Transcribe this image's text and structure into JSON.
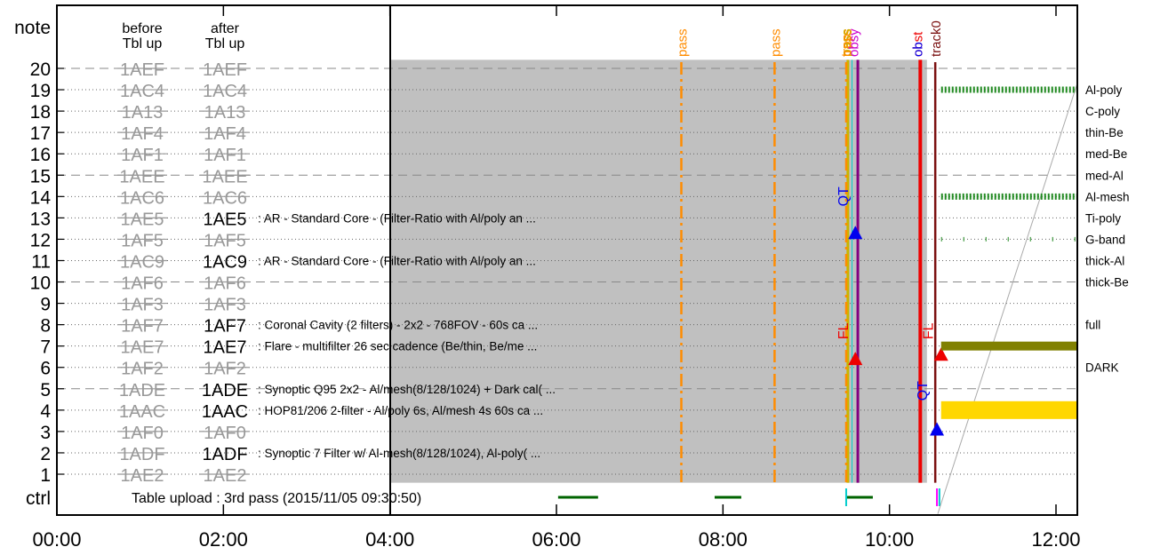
{
  "chart_data": {
    "type": "timeline",
    "corner_label": "note",
    "col_headers": {
      "before": [
        "before",
        "Tbl up"
      ],
      "after": [
        "after",
        "Tbl up"
      ]
    },
    "x_ticks": [
      "00:00",
      "02:00",
      "04:00",
      "06:00",
      "08:00",
      "10:00",
      "12:00"
    ],
    "xlim_hours": [
      0,
      12.25
    ],
    "shaded_region_hours": [
      4.0,
      10.45
    ],
    "rows": [
      {
        "note": 1,
        "before": "1AE2",
        "after": "1AE2",
        "after_active": false,
        "desc": "",
        "right_label": ""
      },
      {
        "note": 2,
        "before": "1ADF",
        "after": "1ADF",
        "after_active": true,
        "desc": ": Synoptic 7 Filter w/ Al-mesh(8/128/1024), Al-poly( ...",
        "right_label": ""
      },
      {
        "note": 3,
        "before": "1AF0",
        "after": "1AF0",
        "after_active": false,
        "desc": "",
        "right_label": ""
      },
      {
        "note": 4,
        "before": "1AAC",
        "after": "1AAC",
        "after_active": true,
        "desc": ": HOP81/206 2-filter - Al/poly 6s, Al/mesh 4s 60s ca ...",
        "right_label": ""
      },
      {
        "note": 5,
        "before": "1ADE",
        "after": "1ADE",
        "after_active": true,
        "desc": ": Synoptic Q95 2x2 - Al/mesh(8/128/1024) + Dark cal( ...",
        "right_label": ""
      },
      {
        "note": 6,
        "before": "1AF2",
        "after": "1AF2",
        "after_active": false,
        "desc": "",
        "right_label": "DARK"
      },
      {
        "note": 7,
        "before": "1AE7",
        "after": "1AE7",
        "after_active": true,
        "desc": ": Flare - multifilter 26 sec cadence (Be/thin, Be/me ...",
        "right_label": ""
      },
      {
        "note": 8,
        "before": "1AF7",
        "after": "1AF7",
        "after_active": true,
        "desc": ": Coronal Cavity (2 filters) - 2x2 - 768FOV - 60s ca ...",
        "right_label": "full"
      },
      {
        "note": 9,
        "before": "1AF3",
        "after": "1AF3",
        "after_active": false,
        "desc": "",
        "right_label": ""
      },
      {
        "note": 10,
        "before": "1AF6",
        "after": "1AF6",
        "after_active": false,
        "desc": "",
        "right_label": "thick-Be"
      },
      {
        "note": 11,
        "before": "1AC9",
        "after": "1AC9",
        "after_active": true,
        "desc": ": AR - Standard Core - (Filter-Ratio with Al/poly an ...",
        "right_label": "thick-Al"
      },
      {
        "note": 12,
        "before": "1AF5",
        "after": "1AF5",
        "after_active": false,
        "desc": "",
        "right_label": "G-band"
      },
      {
        "note": 13,
        "before": "1AE5",
        "after": "1AE5",
        "after_active": true,
        "desc": ": AR - Standard Core - (Filter-Ratio with Al/poly an ...",
        "right_label": "Ti-poly"
      },
      {
        "note": 14,
        "before": "1AC6",
        "after": "1AC6",
        "after_active": false,
        "desc": "",
        "right_label": "Al-mesh"
      },
      {
        "note": 15,
        "before": "1AEE",
        "after": "1AEE",
        "after_active": false,
        "desc": "",
        "right_label": "med-Al"
      },
      {
        "note": 16,
        "before": "1AF1",
        "after": "1AF1",
        "after_active": false,
        "desc": "",
        "right_label": "med-Be"
      },
      {
        "note": 17,
        "before": "1AF4",
        "after": "1AF4",
        "after_active": false,
        "desc": "",
        "right_label": "thin-Be"
      },
      {
        "note": 18,
        "before": "1A13",
        "after": "1A13",
        "after_active": false,
        "desc": "",
        "right_label": "C-poly"
      },
      {
        "note": 19,
        "before": "1AC4",
        "after": "1AC4",
        "after_active": false,
        "desc": "",
        "right_label": "Al-poly"
      },
      {
        "note": 20,
        "before": "1AEF",
        "after": "1AEF",
        "after_active": false,
        "desc": "",
        "right_label": ""
      }
    ],
    "ctrl_label": "ctrl",
    "ctrl_text": "Table upload : 3rd pass (2015/11/05 09:30:50)",
    "vertical_events": [
      {
        "label": "pass",
        "hour": 7.5,
        "color": "#ff8c00",
        "style": "dashdot",
        "width": 2.5
      },
      {
        "label": "pass",
        "hour": 8.62,
        "color": "#ff8c00",
        "style": "dashdot",
        "width": 2.5
      },
      {
        "label": "pass",
        "hour": 9.48,
        "color": "#ff8c00",
        "style": "dashdot",
        "width": 2.5
      },
      {
        "label": "track0",
        "hour": 10.55,
        "color": "#7a1010",
        "style": "solid",
        "width": 2.5
      }
    ],
    "stacked_event_labels": [
      {
        "hour": 9.47,
        "texts": [
          {
            "t": "pass",
            "color": "#ff8c00"
          },
          {
            "t": "pass",
            "color": "#c8b400"
          },
          {
            "t": "trpp",
            "color": "#ff8c00"
          }
        ]
      },
      {
        "hour": 9.56,
        "texts": [
          {
            "t": "obsy",
            "color": "#cc00cc"
          }
        ]
      },
      {
        "hour": 10.33,
        "texts": [
          {
            "t": "obst",
            "color": "#ee0000"
          },
          {
            "t": "ob",
            "color": "#0000ee"
          }
        ]
      }
    ],
    "vertical_lines": [
      {
        "hour": 9.5,
        "color": "#c8b400",
        "width": 3
      },
      {
        "hour": 9.55,
        "color": "#00cccc",
        "width": 1
      },
      {
        "hour": 9.62,
        "color": "#800080",
        "width": 3
      },
      {
        "hour": 10.37,
        "color": "#ee0000",
        "width": 4
      }
    ],
    "markers": [
      {
        "text": "QT",
        "hour": 9.5,
        "note": 14.0,
        "color": "#0000ee",
        "kind": "label"
      },
      {
        "hour": 9.59,
        "note": 12.3,
        "color": "#0000ee",
        "kind": "triangle"
      },
      {
        "text": "FL",
        "hour": 9.5,
        "note": 7.7,
        "color": "#ee0000",
        "kind": "label"
      },
      {
        "hour": 9.59,
        "note": 6.4,
        "color": "#ee0000",
        "kind": "triangle"
      },
      {
        "text": "FL",
        "hour": 10.52,
        "note": 7.7,
        "color": "#ee0000",
        "kind": "label"
      },
      {
        "hour": 10.62,
        "note": 6.6,
        "color": "#ee0000",
        "kind": "triangle"
      },
      {
        "text": "QT",
        "hour": 10.45,
        "note": 4.9,
        "color": "#0000ee",
        "kind": "label"
      },
      {
        "hour": 10.57,
        "note": 3.1,
        "color": "#0000ee",
        "kind": "triangle"
      }
    ],
    "bars": [
      {
        "note": 19,
        "h0": 10.62,
        "h1": 12.25,
        "color": "#228b22",
        "style": "hatched",
        "thick": 7
      },
      {
        "note": 14,
        "h0": 10.62,
        "h1": 12.25,
        "color": "#228b22",
        "style": "hatched",
        "thick": 7
      },
      {
        "note": 12,
        "h0": 10.62,
        "h1": 12.25,
        "color": "#228b22",
        "style": "sparse",
        "thick": 5
      },
      {
        "note": 7,
        "h0": 10.62,
        "h1": 12.25,
        "color": "#808000",
        "style": "solid",
        "thick": 10
      },
      {
        "note": 4,
        "h0": 10.62,
        "h1": 12.25,
        "color": "#ffd700",
        "style": "solid",
        "thick": 20
      }
    ],
    "ctrl_segments": [
      {
        "h0": 6.02,
        "h1": 6.5,
        "color": "#006400"
      },
      {
        "h0": 7.9,
        "h1": 8.22,
        "color": "#006400"
      },
      {
        "h0": 9.48,
        "h1": 9.8,
        "color": "#006400"
      }
    ],
    "ctrl_ticks": [
      {
        "hour": 9.48,
        "color": "#00cccc"
      },
      {
        "hour": 10.57,
        "color": "#ff00ff"
      },
      {
        "hour": 10.6,
        "color": "#00cccc"
      }
    ]
  }
}
